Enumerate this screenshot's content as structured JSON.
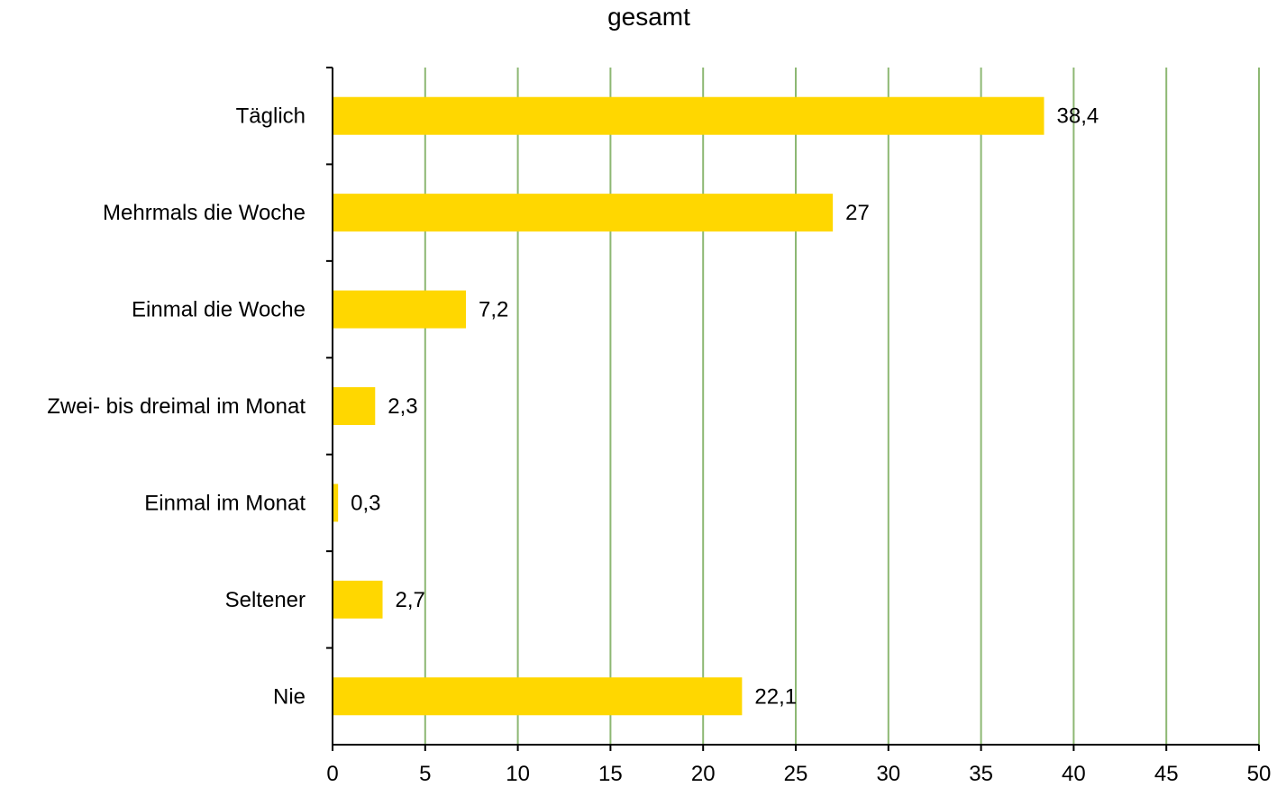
{
  "chart_data": {
    "type": "bar",
    "orientation": "horizontal",
    "title": "gesamt",
    "xlabel": "",
    "ylabel": "",
    "categories": [
      "Täglich",
      "Mehrmals die Woche",
      "Einmal die Woche",
      "Zwei- bis dreimal im Monat",
      "Einmal im Monat",
      "Seltener",
      "Nie"
    ],
    "values": [
      38.4,
      27,
      7.2,
      2.3,
      0.3,
      2.7,
      22.1
    ],
    "value_labels": [
      "38,4",
      "27",
      "7,2",
      "2,3",
      "0,3",
      "2,7",
      "22,1"
    ],
    "xlim": [
      0,
      50
    ],
    "x_ticks": [
      0,
      5,
      10,
      15,
      20,
      25,
      30,
      35,
      40,
      45,
      50
    ],
    "grid": "vertical",
    "legend": "none",
    "colors": {
      "bar": "#FFD700",
      "grid": "#8DB873",
      "axis": "#000000"
    }
  }
}
